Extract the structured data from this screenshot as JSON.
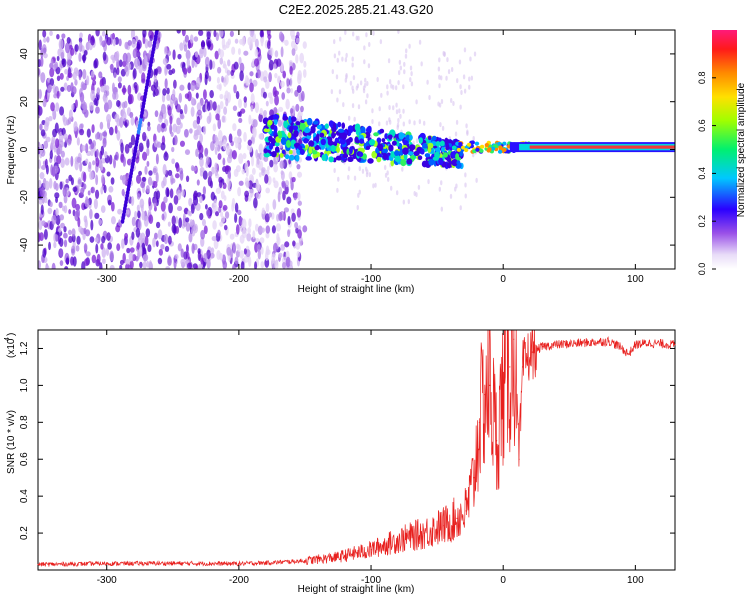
{
  "title": "C2E2.2025.285.21.43.G20",
  "colors": {
    "snr_line": "#e8201e",
    "pale_purple": "#d9c4f0",
    "violet": "#7a1fd6",
    "deep_violet": "#4a00c8",
    "ridge_red": "#f03a3a"
  },
  "chart_data": [
    {
      "type": "heatmap",
      "title": "C2E2.2025.285.21.43.G20",
      "xlabel": "Height of straight line (km)",
      "ylabel": "Frequency (Hz)",
      "xlim": [
        -352,
        130
      ],
      "ylim": [
        -50,
        50
      ],
      "xticks": [
        -300,
        -200,
        -100,
        0,
        100
      ],
      "xtick_labels": [
        "-300",
        "-200",
        "-100",
        "0",
        "100"
      ],
      "yticks": [
        -40,
        -20,
        0,
        20,
        40
      ],
      "ytick_labels": [
        "-40",
        "-20",
        "0",
        "20",
        "40"
      ],
      "colorbar": {
        "label": "Normalized spectral amplitude",
        "range": [
          0,
          1
        ],
        "ticks": [
          0.0,
          0.2,
          0.4,
          0.6,
          0.8
        ],
        "tick_labels": [
          "0.0",
          "0.2",
          "0.4",
          "0.6",
          "0.8"
        ]
      },
      "features": {
        "noise_region_x": [
          -352,
          -120
        ],
        "streak": {
          "x_start": -288,
          "y_start": -30,
          "x_end": -262,
          "y_end": 50
        },
        "cluster_region_x": [
          -180,
          -30
        ],
        "ridge": {
          "x_start": 20,
          "x_end": 130,
          "frequency": 1
        }
      }
    },
    {
      "type": "line",
      "xlabel": "Height of straight line (km)",
      "ylabel": "SNR (10 * v/v)",
      "yscale_label": "(x10",
      "yscale_exponent": "4",
      "xlim": [
        -352,
        130
      ],
      "ylim": [
        0,
        13000
      ],
      "xticks": [
        -300,
        -200,
        -100,
        0,
        100
      ],
      "xtick_labels": [
        "-300",
        "-200",
        "-100",
        "0",
        "100"
      ],
      "yticks": [
        2000,
        4000,
        6000,
        8000,
        10000,
        12000
      ],
      "ytick_labels": [
        "0.2",
        "0.4",
        "0.6",
        "0.8",
        "1.0",
        "1.2"
      ],
      "series": [
        {
          "name": "SNR",
          "x": [
            -352,
            -300,
            -250,
            -200,
            -175,
            -150,
            -125,
            -100,
            -80,
            -60,
            -45,
            -35,
            -28,
            -22,
            -18,
            -14,
            -10,
            -5,
            0,
            5,
            8,
            12,
            15,
            18,
            22,
            30,
            40,
            60,
            80,
            88,
            95,
            100,
            110,
            130
          ],
          "y": [
            300,
            350,
            360,
            340,
            400,
            500,
            700,
            1100,
            1600,
            2000,
            2400,
            2800,
            3200,
            5000,
            8000,
            9500,
            10000,
            7000,
            9800,
            11000,
            12500,
            6000,
            11000,
            11500,
            11800,
            12100,
            12200,
            12300,
            12400,
            12100,
            11700,
            12200,
            12300,
            12200
          ]
        }
      ]
    }
  ]
}
